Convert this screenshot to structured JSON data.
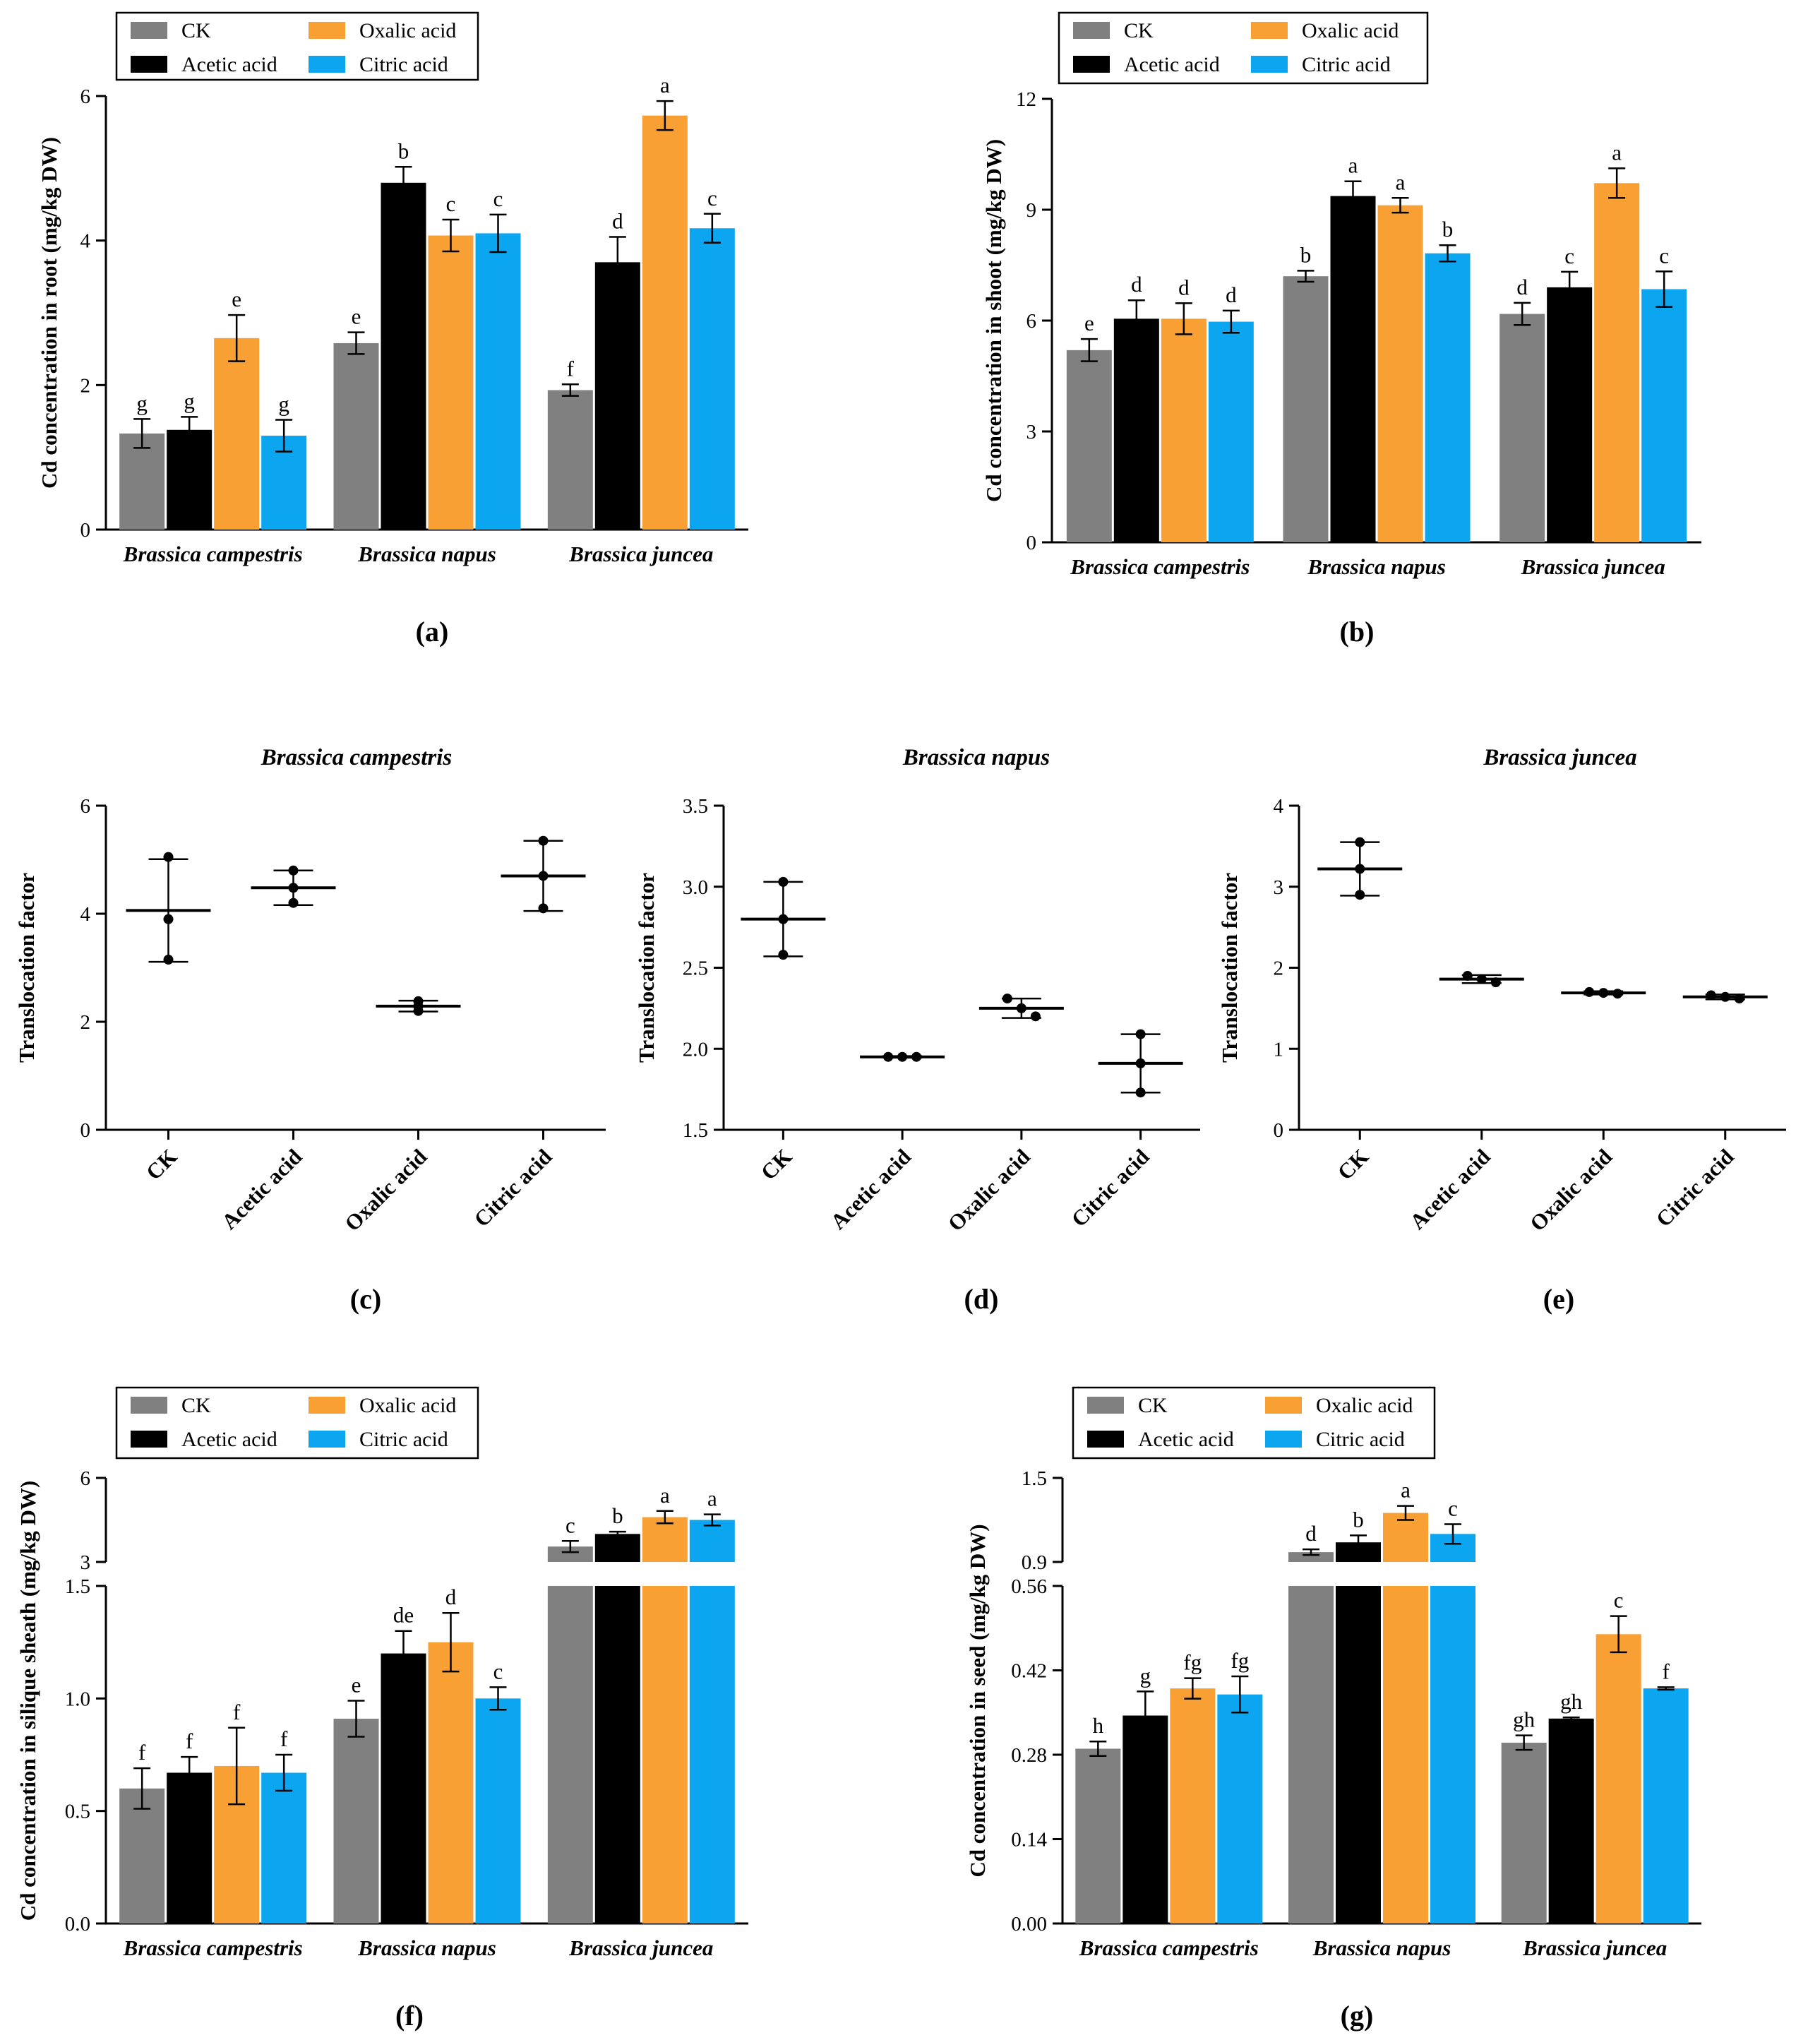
{
  "colors": {
    "CK": "#808080",
    "Acetic acid": "#000000",
    "Oxalic acid": "#F8A033",
    "Citric acid": "#0BA5F0"
  },
  "legend": [
    "CK",
    "Acetic acid",
    "Oxalic acid",
    "Citric acid"
  ],
  "species": [
    "Brassica campestris",
    "Brassica napus",
    "Brassica juncea"
  ],
  "chart_data": [
    {
      "id": "a",
      "panel_label": "(a)",
      "type": "bar",
      "ylabel": "Cd concentration in root (mg/kg DW)",
      "categories": [
        "Brassica campestris",
        "Brassica napus",
        "Brassica juncea"
      ],
      "ylim": [
        0,
        6
      ],
      "yticks": [
        0,
        2,
        4,
        6
      ],
      "series": [
        {
          "name": "CK",
          "values": [
            1.33,
            2.58,
            1.93
          ],
          "errors": [
            0.2,
            0.15,
            0.08
          ],
          "letters": [
            "g",
            "e",
            "f"
          ]
        },
        {
          "name": "Acetic acid",
          "values": [
            1.38,
            4.8,
            3.7
          ],
          "errors": [
            0.18,
            0.22,
            0.35
          ],
          "letters": [
            "g",
            "b",
            "d"
          ]
        },
        {
          "name": "Oxalic acid",
          "values": [
            2.65,
            4.07,
            5.73
          ],
          "errors": [
            0.32,
            0.22,
            0.2
          ],
          "letters": [
            "e",
            "c",
            "a"
          ]
        },
        {
          "name": "Citric acid",
          "values": [
            1.3,
            4.1,
            4.17
          ],
          "errors": [
            0.22,
            0.26,
            0.2
          ],
          "letters": [
            "g",
            "c",
            "c"
          ]
        }
      ]
    },
    {
      "id": "b",
      "panel_label": "(b)",
      "type": "bar",
      "ylabel": "Cd concentration in shoot (mg/kg DW)",
      "categories": [
        "Brassica campestris",
        "Brassica napus",
        "Brassica juncea"
      ],
      "ylim": [
        0,
        12
      ],
      "yticks": [
        0,
        3,
        6,
        9,
        12
      ],
      "series": [
        {
          "name": "CK",
          "values": [
            5.2,
            7.2,
            6.18
          ],
          "errors": [
            0.3,
            0.15,
            0.3
          ],
          "letters": [
            "e",
            "b",
            "d"
          ]
        },
        {
          "name": "Acetic acid",
          "values": [
            6.05,
            9.37,
            6.9
          ],
          "errors": [
            0.5,
            0.4,
            0.42
          ],
          "letters": [
            "d",
            "a",
            "c"
          ]
        },
        {
          "name": "Oxalic acid",
          "values": [
            6.05,
            9.12,
            9.72
          ],
          "errors": [
            0.42,
            0.2,
            0.4
          ],
          "letters": [
            "d",
            "a",
            "a"
          ]
        },
        {
          "name": "Citric acid",
          "values": [
            5.97,
            7.82,
            6.85
          ],
          "errors": [
            0.3,
            0.22,
            0.48
          ],
          "letters": [
            "d",
            "b",
            "c"
          ]
        }
      ]
    },
    {
      "id": "c",
      "panel_label": "(c)",
      "type": "scatter",
      "title": "Brassica campestris",
      "ylabel": "Translocation factor",
      "categories": [
        "CK",
        "Acetic acid",
        "Oxalic acid",
        "Citric acid"
      ],
      "ylim": [
        0,
        6
      ],
      "yticks": [
        0,
        2,
        4,
        6
      ],
      "groups": [
        {
          "name": "CK",
          "mean": 4.06,
          "sd": 0.95,
          "points": [
            5.05,
            3.9,
            3.15
          ]
        },
        {
          "name": "Acetic acid",
          "mean": 4.48,
          "sd": 0.32,
          "points": [
            4.8,
            4.48,
            4.2
          ]
        },
        {
          "name": "Oxalic acid",
          "mean": 2.29,
          "sd": 0.1,
          "points": [
            2.38,
            2.29,
            2.2
          ]
        },
        {
          "name": "Citric acid",
          "mean": 4.7,
          "sd": 0.65,
          "points": [
            5.35,
            4.7,
            4.1
          ]
        }
      ]
    },
    {
      "id": "d",
      "panel_label": "(d)",
      "type": "scatter",
      "title": "Brassica napus",
      "ylabel": "Translocation factor",
      "categories": [
        "CK",
        "Acetic acid",
        "Oxalic acid",
        "Citric acid"
      ],
      "ylim": [
        1.5,
        3.5
      ],
      "yticks": [
        1.5,
        2.0,
        2.5,
        3.0,
        3.5
      ],
      "groups": [
        {
          "name": "CK",
          "mean": 2.8,
          "sd": 0.23,
          "points": [
            3.03,
            2.8,
            2.58
          ]
        },
        {
          "name": "Acetic acid",
          "mean": 1.95,
          "sd": 0.005,
          "points": [
            1.95,
            1.95,
            1.95
          ]
        },
        {
          "name": "Oxalic acid",
          "mean": 2.25,
          "sd": 0.06,
          "points": [
            2.31,
            2.25,
            2.2
          ]
        },
        {
          "name": "Citric acid",
          "mean": 1.91,
          "sd": 0.18,
          "points": [
            2.09,
            1.91,
            1.73
          ]
        }
      ]
    },
    {
      "id": "e",
      "panel_label": "(e)",
      "type": "scatter",
      "title": "Brassica juncea",
      "ylabel": "Translocation factor",
      "categories": [
        "CK",
        "Acetic acid",
        "Oxalic acid",
        "Citric acid"
      ],
      "ylim": [
        0,
        4
      ],
      "yticks": [
        0,
        1,
        2,
        3,
        4
      ],
      "groups": [
        {
          "name": "CK",
          "mean": 3.22,
          "sd": 0.33,
          "points": [
            3.55,
            3.22,
            2.9
          ]
        },
        {
          "name": "Acetic acid",
          "mean": 1.86,
          "sd": 0.05,
          "points": [
            1.9,
            1.86,
            1.82
          ]
        },
        {
          "name": "Oxalic acid",
          "mean": 1.69,
          "sd": 0.02,
          "points": [
            1.7,
            1.69,
            1.68
          ]
        },
        {
          "name": "Citric acid",
          "mean": 1.64,
          "sd": 0.03,
          "points": [
            1.66,
            1.64,
            1.62
          ]
        }
      ]
    },
    {
      "id": "f",
      "panel_label": "(f)",
      "type": "bar",
      "ylabel": "Cd concentration in silique sheath (mg/kg DW)",
      "categories": [
        "Brassica campestris",
        "Brassica napus",
        "Brassica juncea"
      ],
      "broken_axis": {
        "lower": [
          0,
          1.5
        ],
        "upper": [
          3,
          6
        ]
      },
      "yticks_lower": [
        0.0,
        0.5,
        1.0,
        1.5
      ],
      "yticks_upper": [
        3,
        6
      ],
      "series": [
        {
          "name": "CK",
          "values": [
            0.6,
            0.91,
            3.55
          ],
          "errors": [
            0.09,
            0.08,
            0.2
          ],
          "letters": [
            "f",
            "e",
            "c"
          ]
        },
        {
          "name": "Acetic acid",
          "values": [
            0.67,
            1.2,
            4.0
          ],
          "errors": [
            0.07,
            0.1,
            0.08
          ],
          "letters": [
            "f",
            "de",
            "b"
          ]
        },
        {
          "name": "Oxalic acid",
          "values": [
            0.7,
            1.25,
            4.6
          ],
          "errors": [
            0.17,
            0.13,
            0.22
          ],
          "letters": [
            "f",
            "d",
            "a"
          ]
        },
        {
          "name": "Citric acid",
          "values": [
            0.67,
            1.0,
            4.5
          ],
          "errors": [
            0.08,
            0.05,
            0.2
          ],
          "letters": [
            "f",
            "c",
            "a"
          ]
        }
      ]
    },
    {
      "id": "g",
      "panel_label": "(g)",
      "type": "bar",
      "ylabel": "Cd concentration in seed (mg/kg DW)",
      "categories": [
        "Brassica campestris",
        "Brassica napus",
        "Brassica juncea"
      ],
      "broken_axis": {
        "lower": [
          0,
          0.56
        ],
        "upper": [
          0.9,
          1.5
        ]
      },
      "yticks_lower": [
        0.0,
        0.14,
        0.28,
        0.42,
        0.56
      ],
      "ytick_labels_lower": [
        "0.00",
        "0.14",
        "0.28",
        "0.42",
        "0.56"
      ],
      "yticks_upper": [
        0.9,
        1.5
      ],
      "series": [
        {
          "name": "CK",
          "values": [
            0.29,
            0.97,
            0.3
          ],
          "errors": [
            0.012,
            0.02,
            0.012
          ],
          "letters": [
            "h",
            "d",
            "gh"
          ]
        },
        {
          "name": "Acetic acid",
          "values": [
            0.345,
            1.04,
            0.34
          ],
          "errors": [
            0.04,
            0.05,
            0.002
          ],
          "letters": [
            "g",
            "b",
            "gh"
          ]
        },
        {
          "name": "Oxalic acid",
          "values": [
            0.39,
            1.25,
            0.48
          ],
          "errors": [
            0.017,
            0.05,
            0.03
          ],
          "letters": [
            "fg",
            "a",
            "c"
          ]
        },
        {
          "name": "Citric acid",
          "values": [
            0.38,
            1.1,
            0.39
          ],
          "errors": [
            0.03,
            0.07,
            0.002
          ],
          "letters": [
            "fg",
            "c",
            "f"
          ]
        }
      ]
    }
  ]
}
